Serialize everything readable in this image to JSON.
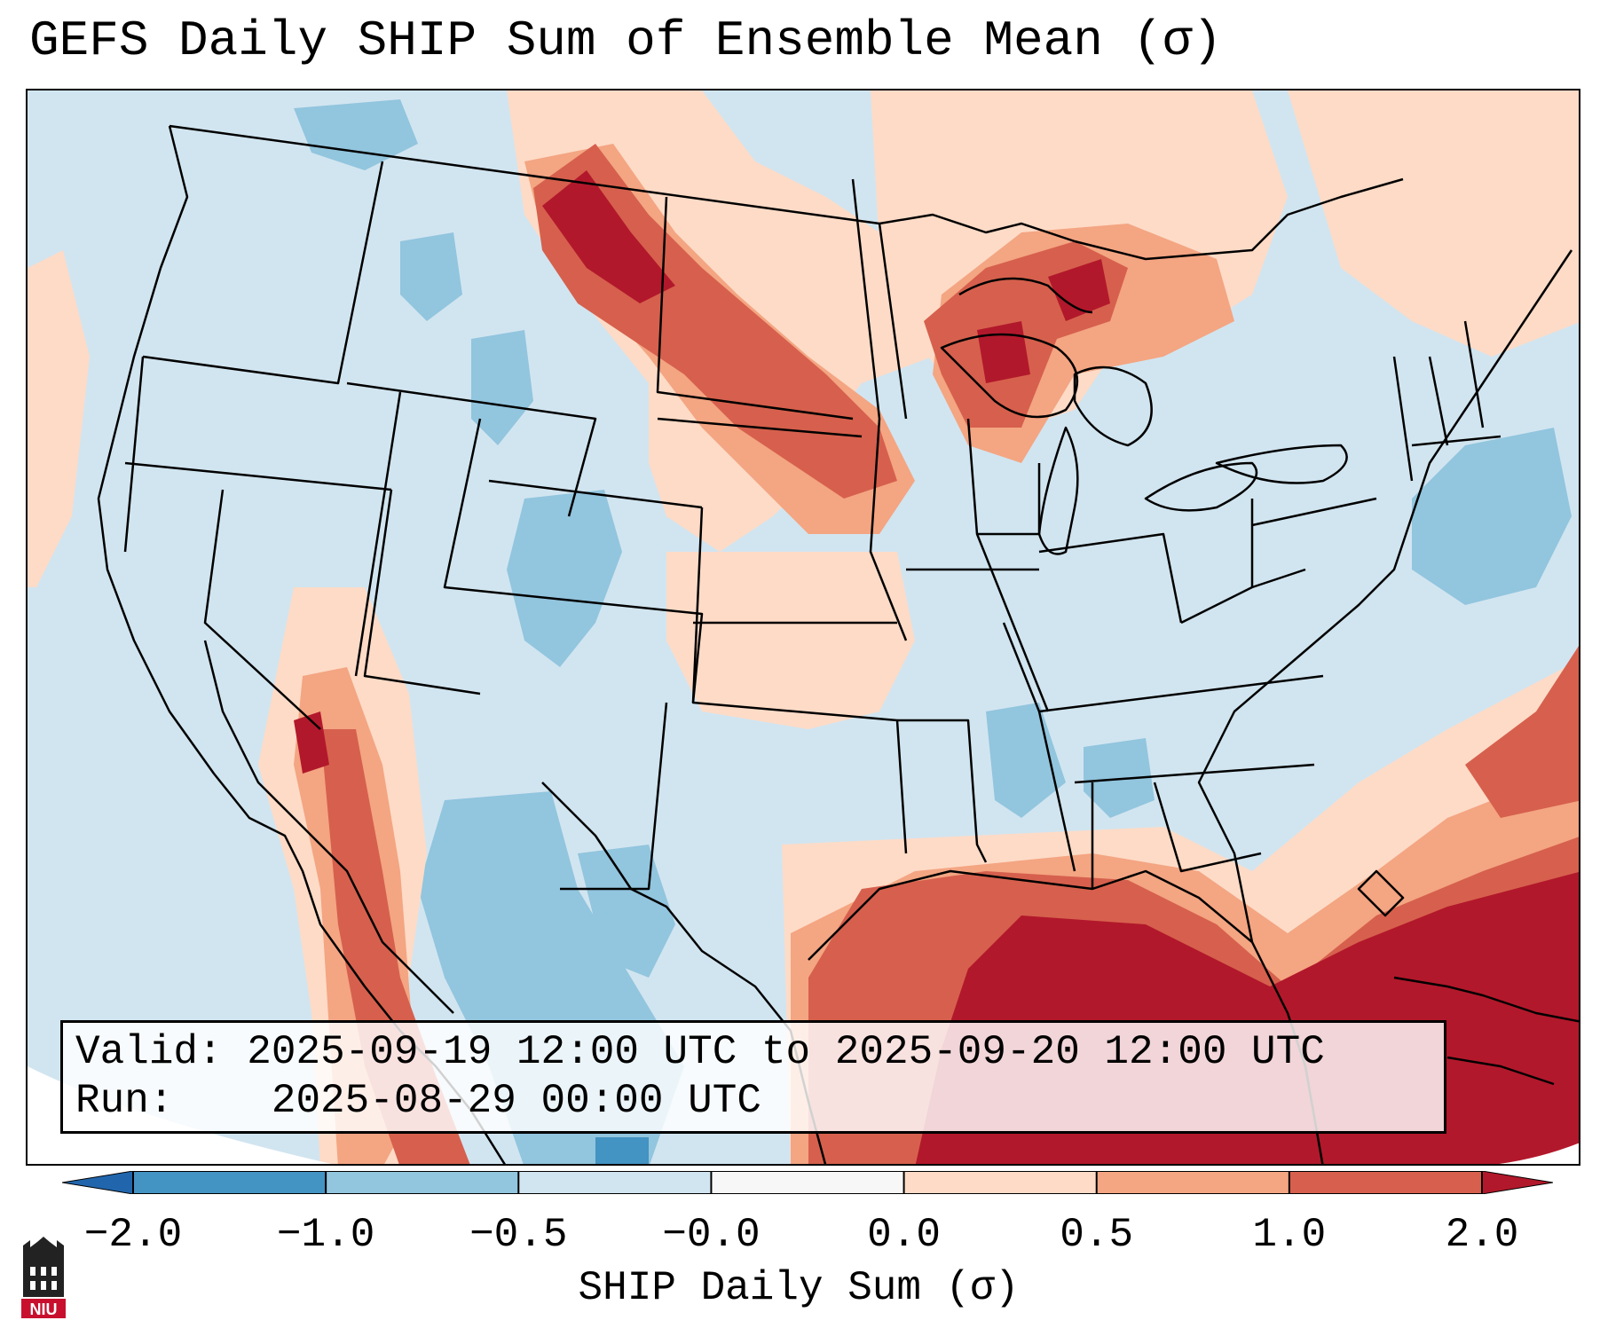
{
  "title": "GEFS Daily SHIP Sum of Ensemble Mean (σ)",
  "info": {
    "valid_label": "Valid:",
    "valid_value": "2025-09-19 12:00 UTC to 2025-09-20 12:00 UTC",
    "run_label": "Run:",
    "run_value": "2025-08-29 00:00 UTC"
  },
  "colorbar": {
    "label": "SHIP Daily Sum (σ)",
    "ticks": [
      "−2.0",
      "−1.0",
      "−0.5",
      "−0.0",
      "0.0",
      "0.5",
      "1.0",
      "2.0"
    ],
    "bin_colors": [
      "#4393c3",
      "#92c5de",
      "#d1e5f0",
      "#f7f7f7",
      "#fddbc7",
      "#f4a582",
      "#d6604d"
    ],
    "under_color": "#2166ac",
    "over_color": "#b2182b"
  },
  "logo": {
    "text": "NIU",
    "color": "#c8102e"
  }
}
